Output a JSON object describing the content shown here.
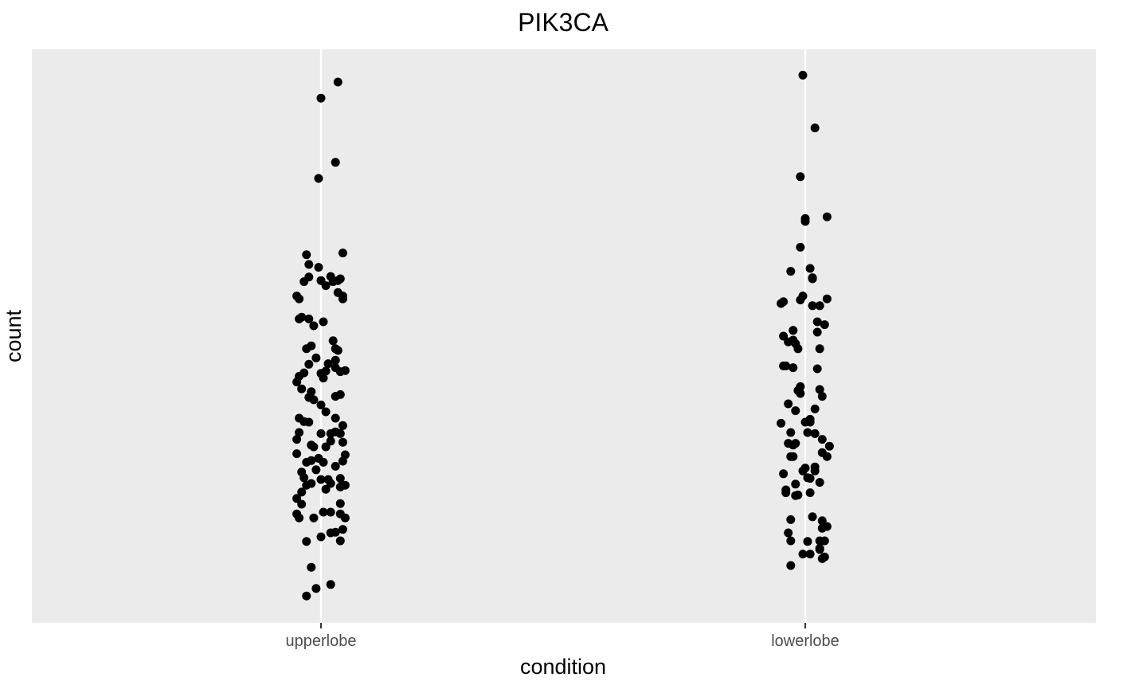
{
  "chart_data": {
    "type": "scatter",
    "title": "PIK3CA",
    "xlabel": "condition",
    "ylabel": "count",
    "categories": [
      "upperlobe",
      "lowerlobe"
    ],
    "y_tick_labels": false,
    "grid": true,
    "colors": {
      "panel": "#ebebeb",
      "grid": "#ffffff",
      "point": "#000000",
      "tick": "#333333"
    },
    "note_units": "y values are in relative units (0 = bottom of panel, 1 = top of panel); axis tick labels are not shown",
    "ylim": [
      0,
      1
    ],
    "series": [
      {
        "category": "upperlobe",
        "points": [
          {
            "x": -0.06,
            "y": 0.047
          },
          {
            "x": -0.02,
            "y": 0.06
          },
          {
            "x": 0.04,
            "y": 0.067
          },
          {
            "x": -0.04,
            "y": 0.097
          },
          {
            "x": -0.06,
            "y": 0.142
          },
          {
            "x": 0.0,
            "y": 0.15
          },
          {
            "x": 0.04,
            "y": 0.157
          },
          {
            "x": 0.08,
            "y": 0.143
          },
          {
            "x": 0.06,
            "y": 0.158
          },
          {
            "x": 0.09,
            "y": 0.163
          },
          {
            "x": 0.1,
            "y": 0.183
          },
          {
            "x": 0.08,
            "y": 0.19
          },
          {
            "x": -0.09,
            "y": 0.183
          },
          {
            "x": -0.1,
            "y": 0.19
          },
          {
            "x": -0.03,
            "y": 0.183
          },
          {
            "x": 0.01,
            "y": 0.193
          },
          {
            "x": 0.04,
            "y": 0.193
          },
          {
            "x": -0.08,
            "y": 0.207
          },
          {
            "x": -0.1,
            "y": 0.217
          },
          {
            "x": 0.08,
            "y": 0.208
          },
          {
            "x": -0.08,
            "y": 0.228
          },
          {
            "x": -0.06,
            "y": 0.24
          },
          {
            "x": -0.04,
            "y": 0.243
          },
          {
            "x": 0.02,
            "y": 0.233
          },
          {
            "x": 0.04,
            "y": 0.243
          },
          {
            "x": 0.08,
            "y": 0.237
          },
          {
            "x": 0.1,
            "y": 0.24
          },
          {
            "x": -0.07,
            "y": 0.253
          },
          {
            "x": 0.0,
            "y": 0.25
          },
          {
            "x": 0.03,
            "y": 0.25
          },
          {
            "x": 0.08,
            "y": 0.252
          },
          {
            "x": -0.08,
            "y": 0.263
          },
          {
            "x": -0.02,
            "y": 0.267
          },
          {
            "x": 0.06,
            "y": 0.273
          },
          {
            "x": 0.09,
            "y": 0.282
          },
          {
            "x": 0.1,
            "y": 0.293
          },
          {
            "x": -0.1,
            "y": 0.295
          },
          {
            "x": -0.06,
            "y": 0.28
          },
          {
            "x": -0.04,
            "y": 0.283
          },
          {
            "x": -0.01,
            "y": 0.287
          },
          {
            "x": 0.01,
            "y": 0.28
          },
          {
            "x": -0.03,
            "y": 0.307
          },
          {
            "x": 0.02,
            "y": 0.307
          },
          {
            "x": -0.04,
            "y": 0.31
          },
          {
            "x": -0.1,
            "y": 0.32
          },
          {
            "x": 0.04,
            "y": 0.317
          },
          {
            "x": 0.09,
            "y": 0.315
          },
          {
            "x": 0.06,
            "y": 0.333
          },
          {
            "x": -0.09,
            "y": 0.332
          },
          {
            "x": 0.04,
            "y": 0.33
          },
          {
            "x": 0.08,
            "y": 0.33
          },
          {
            "x": 0.0,
            "y": 0.33
          },
          {
            "x": -0.05,
            "y": 0.35
          },
          {
            "x": -0.07,
            "y": 0.351
          },
          {
            "x": 0.06,
            "y": 0.357
          },
          {
            "x": 0.09,
            "y": 0.344
          },
          {
            "x": 0.02,
            "y": 0.368
          },
          {
            "x": -0.09,
            "y": 0.357
          },
          {
            "x": 0.0,
            "y": 0.38
          },
          {
            "x": -0.03,
            "y": 0.389
          },
          {
            "x": -0.05,
            "y": 0.393
          },
          {
            "x": -0.04,
            "y": 0.403
          },
          {
            "x": 0.06,
            "y": 0.395
          },
          {
            "x": 0.08,
            "y": 0.398
          },
          {
            "x": -0.1,
            "y": 0.42
          },
          {
            "x": -0.09,
            "y": 0.43
          },
          {
            "x": -0.07,
            "y": 0.436
          },
          {
            "x": -0.05,
            "y": 0.451
          },
          {
            "x": 0.01,
            "y": 0.427
          },
          {
            "x": 0.02,
            "y": 0.439
          },
          {
            "x": 0.06,
            "y": 0.445
          },
          {
            "x": 0.08,
            "y": 0.438
          },
          {
            "x": -0.08,
            "y": 0.408
          },
          {
            "x": 0.0,
            "y": 0.435
          },
          {
            "x": 0.03,
            "y": 0.452
          },
          {
            "x": 0.1,
            "y": 0.44
          },
          {
            "x": -0.06,
            "y": 0.478
          },
          {
            "x": -0.04,
            "y": 0.483
          },
          {
            "x": -0.02,
            "y": 0.462
          },
          {
            "x": 0.06,
            "y": 0.458
          },
          {
            "x": 0.07,
            "y": 0.475
          },
          {
            "x": -0.09,
            "y": 0.53
          },
          {
            "x": -0.08,
            "y": 0.533
          },
          {
            "x": -0.05,
            "y": 0.53
          },
          {
            "x": -0.03,
            "y": 0.518
          },
          {
            "x": 0.01,
            "y": 0.525
          },
          {
            "x": 0.05,
            "y": 0.492
          },
          {
            "x": 0.06,
            "y": 0.478
          },
          {
            "x": 0.09,
            "y": 0.565
          },
          {
            "x": 0.07,
            "y": 0.576
          },
          {
            "x": -0.1,
            "y": 0.57
          },
          {
            "x": -0.09,
            "y": 0.565
          },
          {
            "x": 0.02,
            "y": 0.588
          },
          {
            "x": 0.09,
            "y": 0.57
          },
          {
            "x": -0.05,
            "y": 0.625
          },
          {
            "x": -0.06,
            "y": 0.642
          },
          {
            "x": -0.05,
            "y": 0.603
          },
          {
            "x": 0.0,
            "y": 0.597
          },
          {
            "x": 0.05,
            "y": 0.595
          },
          {
            "x": 0.08,
            "y": 0.6
          },
          {
            "x": 0.07,
            "y": 0.597
          },
          {
            "x": 0.09,
            "y": 0.645
          },
          {
            "x": -0.01,
            "y": 0.62
          },
          {
            "x": 0.04,
            "y": 0.604
          },
          {
            "x": -0.07,
            "y": 0.595
          },
          {
            "x": -0.01,
            "y": 0.775
          },
          {
            "x": 0.0,
            "y": 0.915
          },
          {
            "x": 0.06,
            "y": 0.803
          },
          {
            "x": 0.07,
            "y": 0.943
          }
        ]
      },
      {
        "category": "lowerlobe",
        "points": [
          {
            "x": -0.06,
            "y": 0.1
          },
          {
            "x": -0.06,
            "y": 0.143
          },
          {
            "x": -0.07,
            "y": 0.157
          },
          {
            "x": -0.06,
            "y": 0.18
          },
          {
            "x": -0.04,
            "y": 0.222
          },
          {
            "x": -0.03,
            "y": 0.223
          },
          {
            "x": -0.08,
            "y": 0.232
          },
          {
            "x": -0.08,
            "y": 0.227
          },
          {
            "x": -0.04,
            "y": 0.242
          },
          {
            "x": -0.09,
            "y": 0.26
          },
          {
            "x": -0.06,
            "y": 0.29
          },
          {
            "x": -0.05,
            "y": 0.29
          },
          {
            "x": -0.07,
            "y": 0.313
          },
          {
            "x": -0.04,
            "y": 0.313
          },
          {
            "x": -0.1,
            "y": 0.348
          },
          {
            "x": -0.06,
            "y": 0.332
          },
          {
            "x": -0.05,
            "y": 0.31
          },
          {
            "x": -0.04,
            "y": 0.37
          },
          {
            "x": -0.03,
            "y": 0.405
          },
          {
            "x": -0.07,
            "y": 0.382
          },
          {
            "x": -0.09,
            "y": 0.448
          },
          {
            "x": -0.08,
            "y": 0.448
          },
          {
            "x": -0.05,
            "y": 0.445
          },
          {
            "x": -0.04,
            "y": 0.487
          },
          {
            "x": -0.03,
            "y": 0.478
          },
          {
            "x": -0.02,
            "y": 0.412
          },
          {
            "x": -0.05,
            "y": 0.493
          },
          {
            "x": -0.09,
            "y": 0.5
          },
          {
            "x": -0.05,
            "y": 0.51
          },
          {
            "x": -0.07,
            "y": 0.49
          },
          {
            "x": -0.09,
            "y": 0.56
          },
          {
            "x": -0.1,
            "y": 0.557
          },
          {
            "x": -0.02,
            "y": 0.563
          },
          {
            "x": -0.02,
            "y": 0.4
          },
          {
            "x": -0.01,
            "y": 0.57
          },
          {
            "x": -0.06,
            "y": 0.613
          },
          {
            "x": -0.02,
            "y": 0.655
          },
          {
            "x": 0.0,
            "y": 0.7
          },
          {
            "x": 0.0,
            "y": 0.705
          },
          {
            "x": -0.02,
            "y": 0.778
          },
          {
            "x": -0.01,
            "y": 0.955
          },
          {
            "x": 0.04,
            "y": 0.863
          },
          {
            "x": 0.09,
            "y": 0.708
          },
          {
            "x": 0.02,
            "y": 0.618
          },
          {
            "x": 0.03,
            "y": 0.6
          },
          {
            "x": 0.03,
            "y": 0.602
          },
          {
            "x": 0.09,
            "y": 0.565
          },
          {
            "x": 0.06,
            "y": 0.553
          },
          {
            "x": 0.03,
            "y": 0.553
          },
          {
            "x": 0.05,
            "y": 0.525
          },
          {
            "x": 0.08,
            "y": 0.52
          },
          {
            "x": 0.05,
            "y": 0.507
          },
          {
            "x": 0.06,
            "y": 0.478
          },
          {
            "x": 0.05,
            "y": 0.443
          },
          {
            "x": 0.06,
            "y": 0.407
          },
          {
            "x": 0.07,
            "y": 0.395
          },
          {
            "x": 0.04,
            "y": 0.373
          },
          {
            "x": 0.02,
            "y": 0.355
          },
          {
            "x": 0.02,
            "y": 0.35
          },
          {
            "x": 0.01,
            "y": 0.332
          },
          {
            "x": 0.0,
            "y": 0.35
          },
          {
            "x": 0.04,
            "y": 0.33
          },
          {
            "x": 0.07,
            "y": 0.32
          },
          {
            "x": 0.09,
            "y": 0.29
          },
          {
            "x": 0.1,
            "y": 0.308
          },
          {
            "x": 0.07,
            "y": 0.297
          },
          {
            "x": 0.0,
            "y": 0.27
          },
          {
            "x": 0.01,
            "y": 0.253
          },
          {
            "x": 0.02,
            "y": 0.227
          },
          {
            "x": 0.02,
            "y": 0.252
          },
          {
            "x": 0.03,
            "y": 0.185
          },
          {
            "x": 0.04,
            "y": 0.272
          },
          {
            "x": 0.06,
            "y": 0.245
          },
          {
            "x": 0.07,
            "y": 0.178
          },
          {
            "x": 0.07,
            "y": 0.165
          },
          {
            "x": 0.06,
            "y": 0.143
          },
          {
            "x": 0.08,
            "y": 0.143
          },
          {
            "x": 0.09,
            "y": 0.168
          },
          {
            "x": 0.06,
            "y": 0.128
          },
          {
            "x": 0.07,
            "y": 0.112
          },
          {
            "x": 0.08,
            "y": 0.115
          },
          {
            "x": 0.06,
            "y": 0.13
          },
          {
            "x": 0.01,
            "y": 0.142
          },
          {
            "x": 0.02,
            "y": 0.12
          },
          {
            "x": -0.01,
            "y": 0.12
          },
          {
            "x": -0.01,
            "y": 0.265
          },
          {
            "x": 0.04,
            "y": 0.265
          }
        ]
      }
    ]
  }
}
